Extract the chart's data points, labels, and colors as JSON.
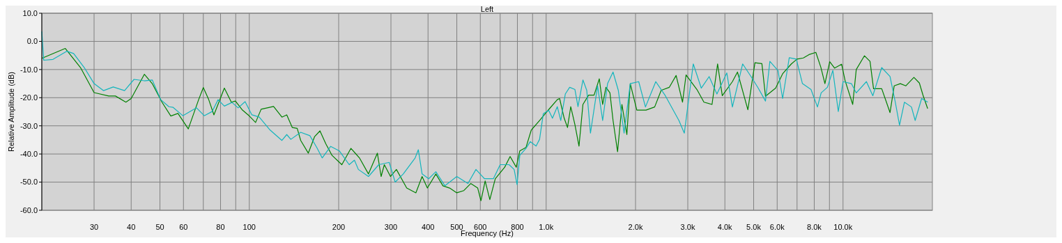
{
  "chart_data": {
    "type": "line",
    "title": "Left",
    "xlabel": "Frequency (Hz)",
    "ylabel": "Relative Amplitude (dB)",
    "log": "x",
    "grid": true,
    "line_style": "solid",
    "marker": "none",
    "xlim": [
      20,
      20000
    ],
    "ylim": [
      -60,
      10
    ],
    "xticks": [
      30,
      40,
      50,
      60,
      {
        "value": 70,
        "label": null
      },
      80,
      {
        "value": 90,
        "label": null
      },
      100,
      200,
      300,
      400,
      500,
      600,
      {
        "value": 700,
        "label": null
      },
      800,
      {
        "value": 900,
        "label": null
      },
      {
        "value": 1000,
        "label": "1.0k"
      },
      {
        "value": 2000,
        "label": "2.0k"
      },
      {
        "value": 3000,
        "label": "3.0k"
      },
      {
        "value": 4000,
        "label": "4.0k"
      },
      {
        "value": 5000,
        "label": "5.0k"
      },
      {
        "value": 6000,
        "label": "6.0k"
      },
      {
        "value": 7000,
        "label": null
      },
      {
        "value": 8000,
        "label": "8.0k"
      },
      {
        "value": 9000,
        "label": null
      },
      {
        "value": 10000,
        "label": "10.0k"
      }
    ],
    "yticks": [
      {
        "value": 10,
        "label": "10.0"
      },
      {
        "value": 0,
        "label": "0.0"
      },
      {
        "value": -10,
        "label": "-10.0"
      },
      {
        "value": -20,
        "label": "-20.0"
      },
      {
        "value": -30,
        "label": "-30.0"
      },
      {
        "value": -40,
        "label": "-40.0"
      },
      {
        "value": -50,
        "label": "-50.0"
      },
      {
        "value": -60,
        "label": "-60.0"
      }
    ],
    "series": [
      {
        "color": "#008000",
        "x": [
          20,
          24,
          27,
          30,
          33.6,
          35.4,
          38.4,
          40,
          44.3,
          47.1,
          50.8,
          54.4,
          57.5,
          62.3,
          67.5,
          70,
          73,
          76,
          82.4,
          87,
          89.8,
          94.8,
          100,
          105,
          109.6,
          120.7,
          128.8,
          133.7,
          139.6,
          145,
          149,
          158,
          166,
          173,
          181,
          190,
          205,
          220,
          235,
          252,
          270,
          278,
          285,
          299,
          313,
          339,
          364,
          382,
          398,
          425,
          449,
          473,
          500,
          528,
          557,
          588,
          603,
          623,
          646,
          674,
          725,
          756,
          793,
          815,
          855,
          891,
          950,
          1000,
          1030,
          1090,
          1110,
          1150,
          1180,
          1210,
          1250,
          1290,
          1330,
          1390,
          1450,
          1510,
          1550,
          1590,
          1640,
          1680,
          1740,
          1800,
          1870,
          1920,
          2020,
          2170,
          2320,
          2440,
          2600,
          2740,
          2880,
          2960,
          3220,
          3400,
          3620,
          3780,
          3920,
          4240,
          4410,
          4780,
          5050,
          5330,
          5480,
          5930,
          6260,
          6700,
          7000,
          7350,
          7680,
          8100,
          8420,
          8690,
          9020,
          9370,
          9890,
          10160,
          10780,
          11080,
          11810,
          12330,
          12670,
          13500,
          14400,
          14870,
          15600,
          16270,
          17330,
          18080,
          18580,
          19280
        ],
        "values": [
          -6,
          -2.5,
          -9.3,
          -18.2,
          -19.4,
          -19.4,
          -21.6,
          -20.3,
          -11.7,
          -15,
          -21.6,
          -26.5,
          -25.6,
          -31.1,
          -20.7,
          -16.4,
          -20.7,
          -26.1,
          -16.6,
          -21.6,
          -21.2,
          -24.4,
          -26.5,
          -28.8,
          -24.1,
          -23.1,
          -26.9,
          -26.1,
          -30.6,
          -30.9,
          -35.2,
          -39.7,
          -33.8,
          -31.8,
          -36.4,
          -40.5,
          -43.8,
          -38,
          -41.4,
          -47.1,
          -39.7,
          -48,
          -43.8,
          -48,
          -45.5,
          -52.1,
          -53.8,
          -48,
          -52.1,
          -47.1,
          -51.3,
          -52.1,
          -53.8,
          -53,
          -50.5,
          -52.1,
          -56.6,
          -49.6,
          -56.2,
          -48.8,
          -44.7,
          -40.9,
          -44.7,
          -38.9,
          -37.7,
          -31.5,
          -28.1,
          -25.3,
          -23.7,
          -20.7,
          -20.3,
          -27.3,
          -30.6,
          -23.2,
          -29.6,
          -37.2,
          -22.4,
          -19.1,
          -19.1,
          -13.3,
          -22.4,
          -16.3,
          -18.3,
          -28.1,
          -39.2,
          -22.4,
          -33.1,
          -15,
          -24.4,
          -24.4,
          -23.3,
          -17.4,
          -16.3,
          -12.1,
          -21.6,
          -11.9,
          -17.1,
          -21.6,
          -22.4,
          -8,
          -19.3,
          -14.3,
          -10.9,
          -24.3,
          -7.6,
          -7.9,
          -19.5,
          -16.6,
          -11.5,
          -8,
          -6.3,
          -5.9,
          -4.7,
          -3.9,
          -9.2,
          -15,
          -7.2,
          -9.5,
          -8.1,
          -13.9,
          -22.4,
          -10,
          -5.1,
          -7.1,
          -16.8,
          -16.8,
          -25.3,
          -15.8,
          -15,
          -15.8,
          -12.8,
          -14.8,
          -19,
          -23.9
        ]
      },
      {
        "color": "#13b5bd",
        "x": [
          20,
          20.3,
          21.8,
          24.3,
          25.6,
          27.8,
          30,
          32.3,
          34.8,
          38,
          40.9,
          44.3,
          47.1,
          50.3,
          53.6,
          55.3,
          59.7,
          66.4,
          70.5,
          75,
          78.5,
          82.4,
          87.4,
          91.7,
          96.8,
          102,
          108,
          117.5,
          128.8,
          133.7,
          138,
          149,
          160,
          168.6,
          176,
          188,
          201,
          217,
          226,
          233,
          252,
          273,
          296,
          310,
          330,
          362,
          371,
          382,
          402,
          425,
          456,
          500,
          545,
          580,
          620,
          664,
          700,
          750,
          780,
          798,
          815,
          855,
          884,
          925,
          950,
          978,
          1020,
          1050,
          1090,
          1120,
          1160,
          1200,
          1250,
          1280,
          1330,
          1370,
          1410,
          1490,
          1550,
          1610,
          1680,
          1750,
          1830,
          1920,
          2050,
          2160,
          2340,
          2520,
          2800,
          2920,
          3130,
          3330,
          3540,
          3760,
          4060,
          4240,
          4590,
          4900,
          5180,
          5480,
          5670,
          6040,
          6260,
          6590,
          6960,
          7300,
          7800,
          8200,
          8440,
          8860,
          9240,
          9640,
          10000,
          10670,
          11080,
          11990,
          12600,
          13500,
          14400,
          15000,
          15500,
          16100,
          17000,
          17500,
          18400,
          19300
        ],
        "values": [
          3.5,
          -6.7,
          -6.4,
          -3.5,
          -4.3,
          -9.3,
          -15,
          -17.5,
          -16.2,
          -17.5,
          -13.5,
          -14,
          -13.7,
          -20.7,
          -23.2,
          -23.4,
          -26.4,
          -23.6,
          -26.4,
          -24.9,
          -20.7,
          -23,
          -21.7,
          -23.6,
          -21.4,
          -26.1,
          -26.9,
          -31.5,
          -35.2,
          -33.1,
          -34.8,
          -32.3,
          -33.5,
          -37.6,
          -41.4,
          -37.3,
          -38.9,
          -43.8,
          -42.2,
          -45.5,
          -48,
          -43.8,
          -43,
          -50,
          -47.1,
          -41.4,
          -38.5,
          -47.1,
          -48.8,
          -46.3,
          -51.3,
          -48,
          -50.5,
          -45.5,
          -48.8,
          -48.8,
          -43.8,
          -43.8,
          -45.5,
          -50.9,
          -40.5,
          -38,
          -35.6,
          -37.2,
          -34.8,
          -25.7,
          -24.5,
          -27.3,
          -23.2,
          -28.1,
          -18.7,
          -16.3,
          -17.1,
          -23.2,
          -13.7,
          -17.4,
          -32.6,
          -15.8,
          -28.1,
          -15,
          -10.9,
          -17.4,
          -32.6,
          -15,
          -14.3,
          -23.3,
          -14.3,
          -19.3,
          -28.1,
          -32.6,
          -8,
          -16.6,
          -12.5,
          -18.7,
          -11.2,
          -23.3,
          -8,
          -12.5,
          -16.6,
          -21.2,
          -7.1,
          -10.4,
          -20.3,
          -5.8,
          -6.3,
          -15,
          -17.1,
          -23.3,
          -18.3,
          -16.3,
          -10.3,
          -24.9,
          -14.3,
          -15,
          -18.3,
          -14.3,
          -19.3,
          -9.3,
          -12.5,
          -21.6,
          -29.8,
          -21.6,
          -23.3,
          -28.1,
          -20.3,
          -21.6
        ]
      }
    ]
  }
}
